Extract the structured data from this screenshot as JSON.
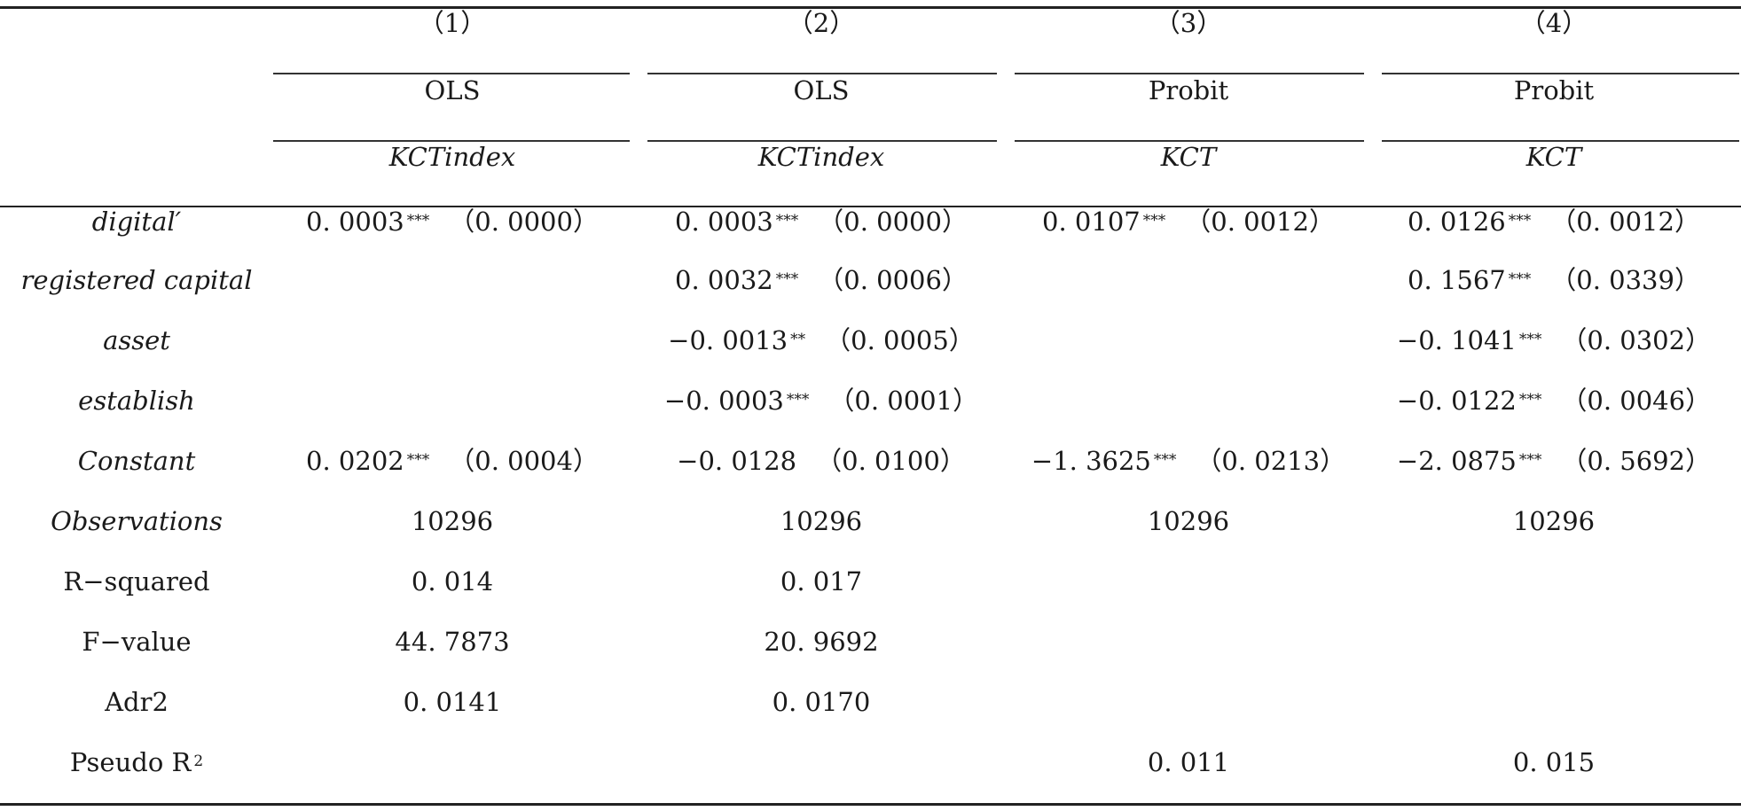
{
  "header": {
    "columns": [
      {
        "num": "（1）",
        "method": "OLS",
        "depvar": "KCTindex"
      },
      {
        "num": "（2）",
        "method": "OLS",
        "depvar": "KCTindex"
      },
      {
        "num": "（3）",
        "method": "Probit",
        "depvar": "KCT"
      },
      {
        "num": "（4）",
        "method": "Probit",
        "depvar": "KCT"
      }
    ]
  },
  "rows": [
    {
      "label": "digital′",
      "italic": true,
      "cells": [
        {
          "coef": "0. 0003",
          "stars": "***",
          "se": "（0. 0000）"
        },
        {
          "coef": "0. 0003",
          "stars": "***",
          "se": "（0. 0000）"
        },
        {
          "coef": "0. 0107",
          "stars": "***",
          "se": "（0. 0012）"
        },
        {
          "coef": "0. 0126",
          "stars": "***",
          "se": "（0. 0012）"
        }
      ]
    },
    {
      "label": "registered capital",
      "italic": true,
      "cells": [
        null,
        {
          "coef": "0. 0032",
          "stars": "***",
          "se": "（0. 0006）"
        },
        null,
        {
          "coef": "0. 1567",
          "stars": "***",
          "se": "（0. 0339）"
        }
      ]
    },
    {
      "label": "asset",
      "italic": true,
      "cells": [
        null,
        {
          "coef": "−0. 0013",
          "stars": "**",
          "se": "（0. 0005）"
        },
        null,
        {
          "coef": "−0. 1041",
          "stars": "***",
          "se": "（0. 0302）"
        }
      ]
    },
    {
      "label": "establish",
      "italic": true,
      "cells": [
        null,
        {
          "coef": "−0. 0003",
          "stars": "***",
          "se": "（0. 0001）"
        },
        null,
        {
          "coef": "−0. 0122",
          "stars": "***",
          "se": "（0. 0046）"
        }
      ]
    },
    {
      "label": "Constant",
      "italic": true,
      "cells": [
        {
          "coef": "0. 0202",
          "stars": "***",
          "se": "（0. 0004）"
        },
        {
          "coef": "−0. 0128",
          "stars": "",
          "se": "（0. 0100）"
        },
        {
          "coef": "−1. 3625",
          "stars": "***",
          "se": "（0. 0213）"
        },
        {
          "coef": "−2. 0875",
          "stars": "***",
          "se": "（0. 5692）"
        }
      ]
    },
    {
      "label": "Observations",
      "italic": true,
      "cells": [
        {
          "value": "10296"
        },
        {
          "value": "10296"
        },
        {
          "value": "10296"
        },
        {
          "value": "10296"
        }
      ]
    },
    {
      "label": "R−squared",
      "italic": false,
      "cells": [
        {
          "value": "0. 014"
        },
        {
          "value": "0. 017"
        },
        null,
        null
      ]
    },
    {
      "label": "F−value",
      "italic": false,
      "cells": [
        {
          "value": "44. 7873"
        },
        {
          "value": "20. 9692"
        },
        null,
        null
      ]
    },
    {
      "label": "Adr2",
      "italic": false,
      "cells": [
        {
          "value": "0. 0141"
        },
        {
          "value": "0. 0170"
        },
        null,
        null
      ]
    },
    {
      "label": "Pseudo R",
      "label_sup": "2",
      "italic": false,
      "cells": [
        null,
        null,
        {
          "value": "0. 011"
        },
        {
          "value": "0. 015"
        }
      ]
    }
  ]
}
